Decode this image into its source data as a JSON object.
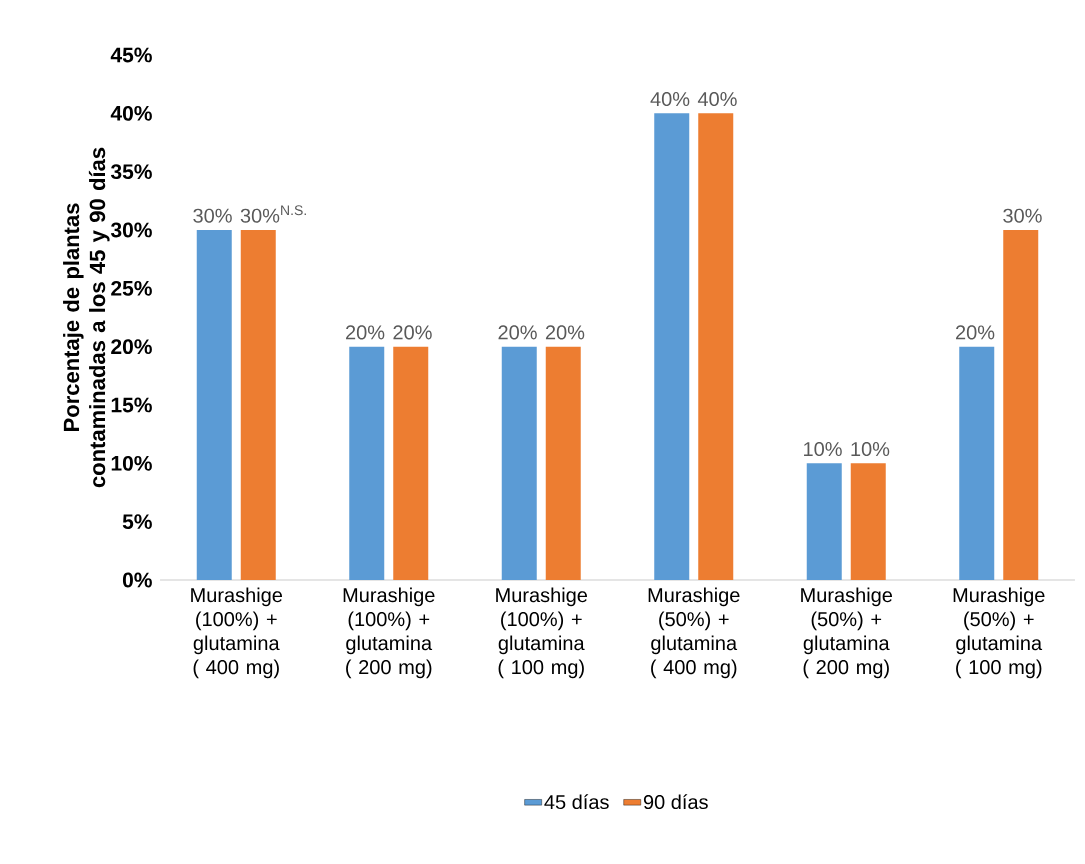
{
  "chart_data": {
    "type": "bar",
    "ylabel": "Porcentaje de plantas contaminadas a los 45 y 90 días",
    "categories": [
      "Murashige (100%) + glutamina ( 400 mg)",
      "Murashige (100%) + glutamina ( 200 mg)",
      "Murashige (100%) + glutamina ( 100 mg)",
      "Murashige (50%) + glutamina ( 400 mg)",
      "Murashige (50%) + glutamina ( 200 mg)",
      "Murashige (50%) + glutamina ( 100 mg)"
    ],
    "series": [
      {
        "name": "45 días",
        "color": "#5b9bd5",
        "values": [
          30,
          20,
          20,
          40,
          10,
          20
        ],
        "value_labels": [
          "30%",
          "20%",
          "20%",
          "40%",
          "10%",
          "20%"
        ]
      },
      {
        "name": "90 días",
        "color": "#ed7d31",
        "values": [
          30,
          20,
          20,
          40,
          10,
          30
        ],
        "value_labels": [
          "30%$^{N.S.}$",
          "20%",
          "20%",
          "40%",
          "10%",
          "30%"
        ]
      }
    ],
    "ylim": [
      0,
      45
    ],
    "yticks": [
      {
        "value": 0,
        "label": "0%"
      },
      {
        "value": 5,
        "label": "5%"
      },
      {
        "value": 10,
        "label": "10%"
      },
      {
        "value": 15,
        "label": "15%"
      },
      {
        "value": 20,
        "label": "20%"
      },
      {
        "value": 25,
        "label": "25%"
      },
      {
        "value": 30,
        "label": "30%"
      },
      {
        "value": 35,
        "label": "35%"
      },
      {
        "value": 40,
        "label": "40%"
      },
      {
        "value": 45,
        "label": "45%"
      }
    ],
    "grid": false,
    "legend": "bottom"
  }
}
